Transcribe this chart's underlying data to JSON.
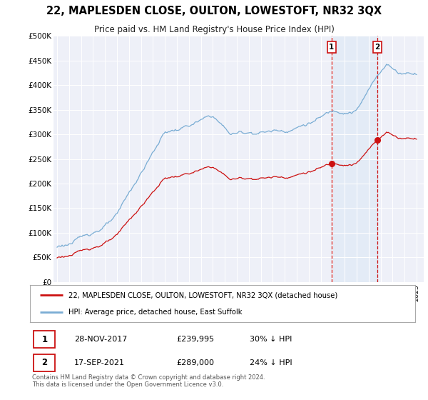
{
  "title": "22, MAPLESDEN CLOSE, OULTON, LOWESTOFT, NR32 3QX",
  "subtitle": "Price paid vs. HM Land Registry's House Price Index (HPI)",
  "legend_line1": "22, MAPLESDEN CLOSE, OULTON, LOWESTOFT, NR32 3QX (detached house)",
  "legend_line2": "HPI: Average price, detached house, East Suffolk",
  "annotation1_date": "28-NOV-2017",
  "annotation1_price": "£239,995",
  "annotation1_hpi": "30% ↓ HPI",
  "annotation2_date": "17-SEP-2021",
  "annotation2_price": "£289,000",
  "annotation2_hpi": "24% ↓ HPI",
  "footer": "Contains HM Land Registry data © Crown copyright and database right 2024.\nThis data is licensed under the Open Government Licence v3.0.",
  "hpi_color": "#7aadd4",
  "price_color": "#cc1111",
  "background_color": "#ffffff",
  "plot_bg_color": "#eef0f8",
  "shade_color": "#d0e4f5",
  "sale1_year": 2017.91,
  "sale1_price": 239995,
  "sale2_year": 2021.72,
  "sale2_price": 289000,
  "ylim": [
    0,
    500000
  ],
  "yticks": [
    0,
    50000,
    100000,
    150000,
    200000,
    250000,
    300000,
    350000,
    400000,
    450000,
    500000
  ],
  "ytick_labels": [
    "£0",
    "£50K",
    "£100K",
    "£150K",
    "£200K",
    "£250K",
    "£300K",
    "£350K",
    "£400K",
    "£450K",
    "£500K"
  ],
  "year_start": 1995,
  "year_end": 2025
}
